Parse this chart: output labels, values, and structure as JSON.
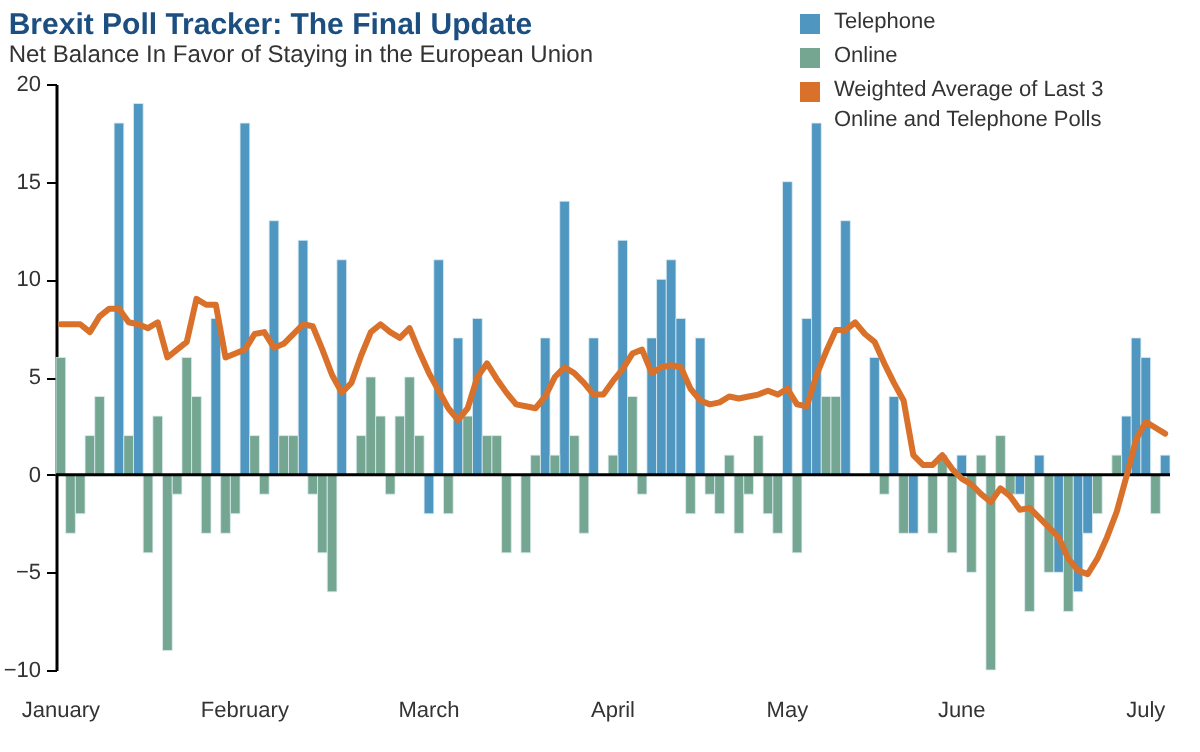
{
  "chart_data": {
    "type": "bar",
    "title": "Brexit Poll Tracker: The Final Update",
    "subtitle": "Net Balance In Favor of Staying in the European Union",
    "categories": [
      "January",
      null,
      null,
      null,
      null,
      null,
      null,
      null,
      null,
      null,
      null,
      null,
      null,
      null,
      null,
      null,
      null,
      null,
      null,
      "February",
      null,
      null,
      null,
      null,
      null,
      null,
      null,
      null,
      null,
      null,
      null,
      null,
      null,
      null,
      null,
      null,
      null,
      null,
      "March",
      null,
      null,
      null,
      null,
      null,
      null,
      null,
      null,
      null,
      null,
      null,
      null,
      null,
      null,
      null,
      null,
      null,
      null,
      "April",
      null,
      null,
      null,
      null,
      null,
      null,
      null,
      null,
      null,
      null,
      null,
      null,
      null,
      null,
      null,
      null,
      null,
      "May",
      null,
      null,
      null,
      null,
      null,
      null,
      null,
      null,
      null,
      null,
      null,
      null,
      null,
      null,
      null,
      null,
      null,
      "June",
      null,
      null,
      null,
      null,
      null,
      null,
      null,
      null,
      null,
      null,
      null,
      null,
      null,
      null,
      null,
      null,
      null,
      null,
      "July",
      null,
      null
    ],
    "series": [
      {
        "name": "Telephone",
        "type": "bar",
        "color": "#4f97c0",
        "values": [
          null,
          null,
          null,
          null,
          null,
          null,
          18,
          null,
          19,
          null,
          null,
          null,
          null,
          null,
          null,
          null,
          8,
          null,
          null,
          18,
          null,
          null,
          13,
          null,
          null,
          12,
          null,
          null,
          null,
          11,
          null,
          null,
          null,
          null,
          null,
          null,
          null,
          null,
          -2,
          11,
          null,
          7,
          null,
          8,
          null,
          null,
          null,
          null,
          null,
          null,
          7,
          null,
          14,
          null,
          null,
          7,
          null,
          null,
          12,
          null,
          null,
          7,
          10,
          11,
          8,
          null,
          7,
          null,
          null,
          null,
          null,
          null,
          null,
          null,
          null,
          15,
          null,
          8,
          18,
          null,
          null,
          13,
          null,
          null,
          6,
          null,
          4,
          null,
          -3,
          null,
          null,
          null,
          null,
          1,
          null,
          null,
          null,
          null,
          null,
          -1,
          null,
          1,
          null,
          -5,
          null,
          -6,
          -3,
          null,
          null,
          null,
          3,
          7,
          6,
          null,
          1
        ]
      },
      {
        "name": "Online",
        "type": "bar",
        "color": "#74a691",
        "values": [
          6,
          -3,
          -2,
          2,
          4,
          null,
          null,
          2,
          null,
          -4,
          3,
          -9,
          -1,
          6,
          4,
          -3,
          null,
          -3,
          -2,
          null,
          2,
          -1,
          null,
          2,
          2,
          null,
          -1,
          -4,
          -6,
          null,
          null,
          2,
          5,
          3,
          -1,
          3,
          5,
          2,
          null,
          null,
          -2,
          null,
          3,
          null,
          2,
          2,
          -4,
          null,
          -4,
          1,
          null,
          1,
          null,
          2,
          -3,
          null,
          null,
          1,
          null,
          4,
          -1,
          null,
          null,
          null,
          null,
          -2,
          null,
          -1,
          -2,
          1,
          -3,
          -1,
          2,
          -2,
          -3,
          null,
          -4,
          null,
          null,
          4,
          4,
          null,
          null,
          null,
          null,
          -1,
          null,
          -3,
          null,
          null,
          -3,
          1,
          -4,
          null,
          -5,
          1,
          -10,
          2,
          -1,
          null,
          -7,
          null,
          -5,
          null,
          -7,
          null,
          null,
          -2,
          null,
          1,
          null,
          null,
          null,
          -2,
          null
        ]
      },
      {
        "name": "Weighted Average of Last 3 Online and Telephone Polls",
        "type": "line",
        "color": "#d9712a",
        "values": [
          7.7,
          7.7,
          7.7,
          7.3,
          8.1,
          8.5,
          8.5,
          7.8,
          7.7,
          7.5,
          7.8,
          6.0,
          6.4,
          6.8,
          9.0,
          8.7,
          8.7,
          6.0,
          6.2,
          6.4,
          7.2,
          7.3,
          6.5,
          6.7,
          7.2,
          7.7,
          7.6,
          6.4,
          5.1,
          4.2,
          4.7,
          6.1,
          7.3,
          7.7,
          7.3,
          7.0,
          7.5,
          6.3,
          5.2,
          4.3,
          3.4,
          2.8,
          3.4,
          5.0,
          5.7,
          4.9,
          4.2,
          3.6,
          3.5,
          3.4,
          4.0,
          5.0,
          5.5,
          5.2,
          4.7,
          4.1,
          4.1,
          4.8,
          5.4,
          6.2,
          6.4,
          5.2,
          5.5,
          5.6,
          5.5,
          4.4,
          3.8,
          3.6,
          3.7,
          4.0,
          3.9,
          4.0,
          4.1,
          4.3,
          4.1,
          4.4,
          3.6,
          3.5,
          5.1,
          6.3,
          7.4,
          7.4,
          7.8,
          7.2,
          6.8,
          5.7,
          4.7,
          3.8,
          1.0,
          0.5,
          0.5,
          1.0,
          0.3,
          -0.2,
          -0.5,
          -1.0,
          -1.4,
          -0.7,
          -1.1,
          -1.8,
          -1.7,
          -2.2,
          -2.7,
          -3.2,
          -4.3,
          -4.9,
          -5.1,
          -4.3,
          -3.2,
          -1.9,
          -0.1,
          1.8,
          2.7,
          2.4,
          2.1
        ]
      }
    ],
    "ylim": [
      -10,
      20
    ],
    "yticks": [
      -10,
      -5,
      0,
      5,
      10,
      15,
      20
    ],
    "ref_lines": [
      {
        "axis": "y",
        "value": 0,
        "color": "#000000"
      }
    ],
    "legend": "top right"
  }
}
